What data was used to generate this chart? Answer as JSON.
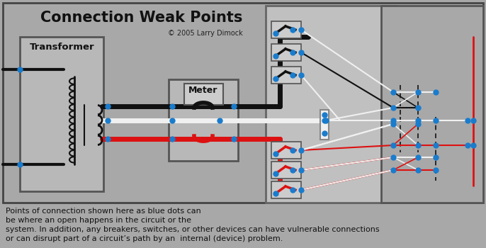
{
  "title": "Connection Weak Points",
  "copyright": "© 2005 Larry Dimock",
  "bg_color": "#a8a8a8",
  "box_color": "#b8b8b8",
  "panel_color": "#c0c0c0",
  "description_line1": "Points of connection shown here as blue dots can",
  "description_line2": "be where an open happens in the circuit or the",
  "description_line3": "system. In addition, any breakers, switches, or other devices can have vulnerable connections",
  "description_line4": "or can disrupt part of a circuit’s path by an  internal (device) problem.",
  "wire_black": "#111111",
  "wire_white": "#f0f0f0",
  "wire_red": "#dd1111",
  "dot_color": "#1a7ccc",
  "dot_size": 5,
  "figsize": [
    6.86,
    3.5
  ],
  "dpi": 100
}
